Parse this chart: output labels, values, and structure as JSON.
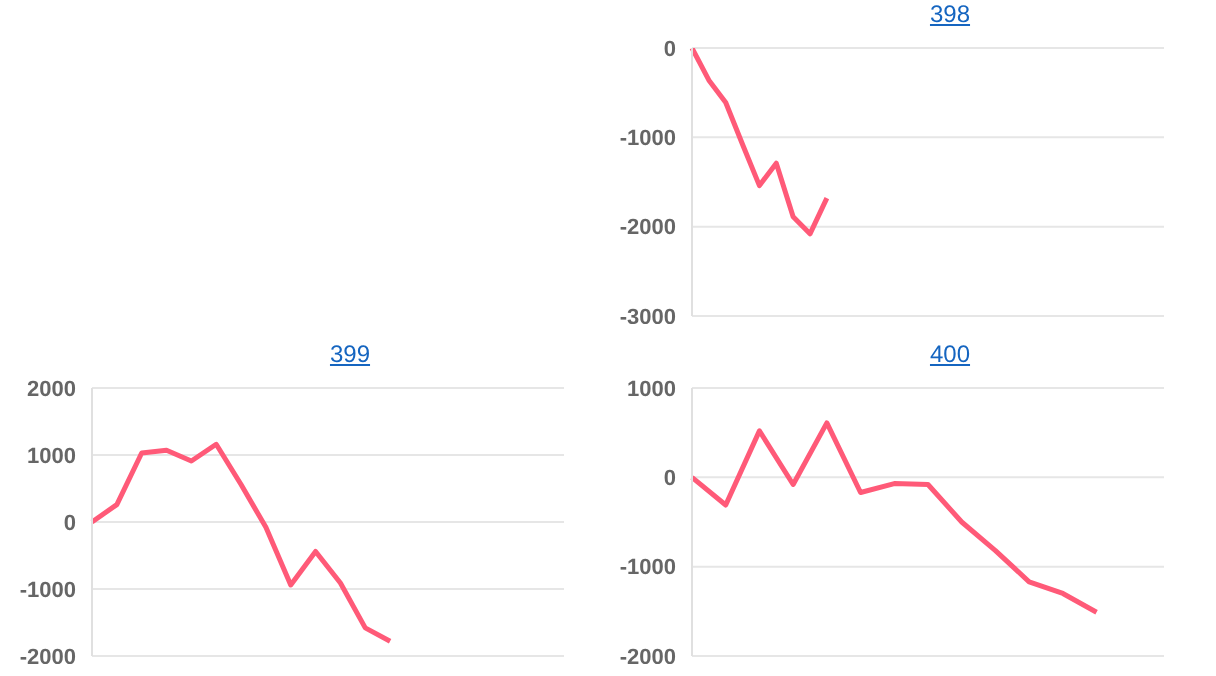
{
  "chart_data": [
    {
      "type": "line",
      "title": "398",
      "categories": [
        null,
        null,
        null,
        null,
        null,
        null,
        null,
        null,
        null,
        null,
        null,
        null,
        null,
        null,
        null,
        null,
        null,
        null,
        null,
        null,
        null,
        null,
        null,
        null,
        null,
        null,
        null,
        null,
        null
      ],
      "values": [
        0,
        -360,
        -610,
        -1080,
        -1540,
        -1290,
        -1890,
        -2080,
        -1680,
        null,
        null,
        null,
        null,
        null,
        null,
        null,
        null,
        null,
        null,
        null,
        null,
        null,
        null,
        null,
        null,
        null,
        null,
        null,
        null
      ],
      "color": "#ff5a78",
      "ylim": [
        -3000,
        0
      ],
      "yticks": [
        -3000,
        -2000,
        -1000,
        0
      ],
      "grid": "y",
      "tick_labels": "y",
      "marker": "none"
    },
    {
      "type": "line",
      "title": "399",
      "categories": [
        null,
        null,
        null,
        null,
        null,
        null,
        null,
        null,
        null,
        null,
        null,
        null,
        null,
        null,
        null,
        null,
        null,
        null,
        null,
        null
      ],
      "values": [
        0,
        260,
        1030,
        1070,
        910,
        1160,
        560,
        -80,
        -940,
        -440,
        -910,
        -1580,
        -1780,
        null,
        null,
        null,
        null,
        null,
        null,
        null
      ],
      "color": "#ff5a78",
      "ylim": [
        -2000,
        2000
      ],
      "yticks": [
        -2000,
        -1000,
        0,
        1000,
        2000
      ],
      "grid": "y",
      "tick_labels": "y",
      "marker": "none"
    },
    {
      "type": "line",
      "title": "400",
      "categories": [
        null,
        null,
        null,
        null,
        null,
        null,
        null,
        null,
        null,
        null,
        null,
        null,
        null,
        null,
        null
      ],
      "values": [
        0,
        -310,
        520,
        -80,
        610,
        -170,
        -70,
        -80,
        -500,
        -820,
        -1170,
        -1300,
        -1510,
        null,
        null
      ],
      "color": "#ff5a78",
      "ylim": [
        -2000,
        1000
      ],
      "yticks": [
        -2000,
        -1000,
        0,
        1000
      ],
      "grid": "y",
      "tick_labels": "y",
      "marker": "none"
    }
  ]
}
